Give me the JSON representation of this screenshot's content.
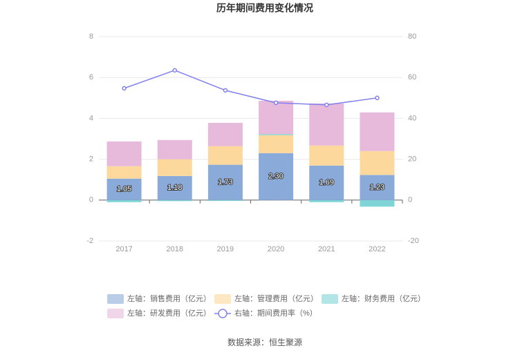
{
  "chart_data": {
    "type": "bar",
    "stacked": true,
    "title": "历年期间费用变化情况",
    "categories": [
      "2017",
      "2018",
      "2019",
      "2020",
      "2021",
      "2022"
    ],
    "series": [
      {
        "name": "左轴：销售费用（亿元）",
        "color": "#8aaad9",
        "values": [
          1.05,
          1.18,
          1.73,
          2.3,
          1.69,
          1.23
        ],
        "value_labels": [
          "1.05",
          "1.18",
          "1.73",
          "2.30",
          "1.69",
          "1.23"
        ]
      },
      {
        "name": "左轴：管理费用（亿元）",
        "color": "#fdd89c",
        "values": [
          0.61,
          0.82,
          0.91,
          0.88,
          0.98,
          1.17
        ]
      },
      {
        "name": "左轴：财务费用（亿元）",
        "color": "#7fd5d6",
        "values": [
          -0.1,
          -0.05,
          -0.04,
          0.05,
          -0.1,
          -0.32
        ]
      },
      {
        "name": "左轴：研发费用（亿元）",
        "color": "#e7b9da",
        "values": [
          1.21,
          0.94,
          1.14,
          1.63,
          2.06,
          1.89
        ]
      },
      {
        "name": "右轴：期间费用率（%）",
        "color": "#8080ee",
        "type": "line",
        "axis": "y2",
        "values": [
          54.7,
          63.5,
          53.7,
          47.6,
          46.6,
          50.0
        ]
      }
    ],
    "ylim": [
      -2,
      8
    ],
    "yticks": [
      -2,
      0,
      2,
      4,
      6,
      8
    ],
    "y2lim": [
      -20,
      80
    ],
    "y2ticks": [
      -20,
      0,
      20,
      40,
      60,
      80
    ],
    "grid": true,
    "legend": "bottom",
    "source": "数据来源：恒生聚源"
  }
}
